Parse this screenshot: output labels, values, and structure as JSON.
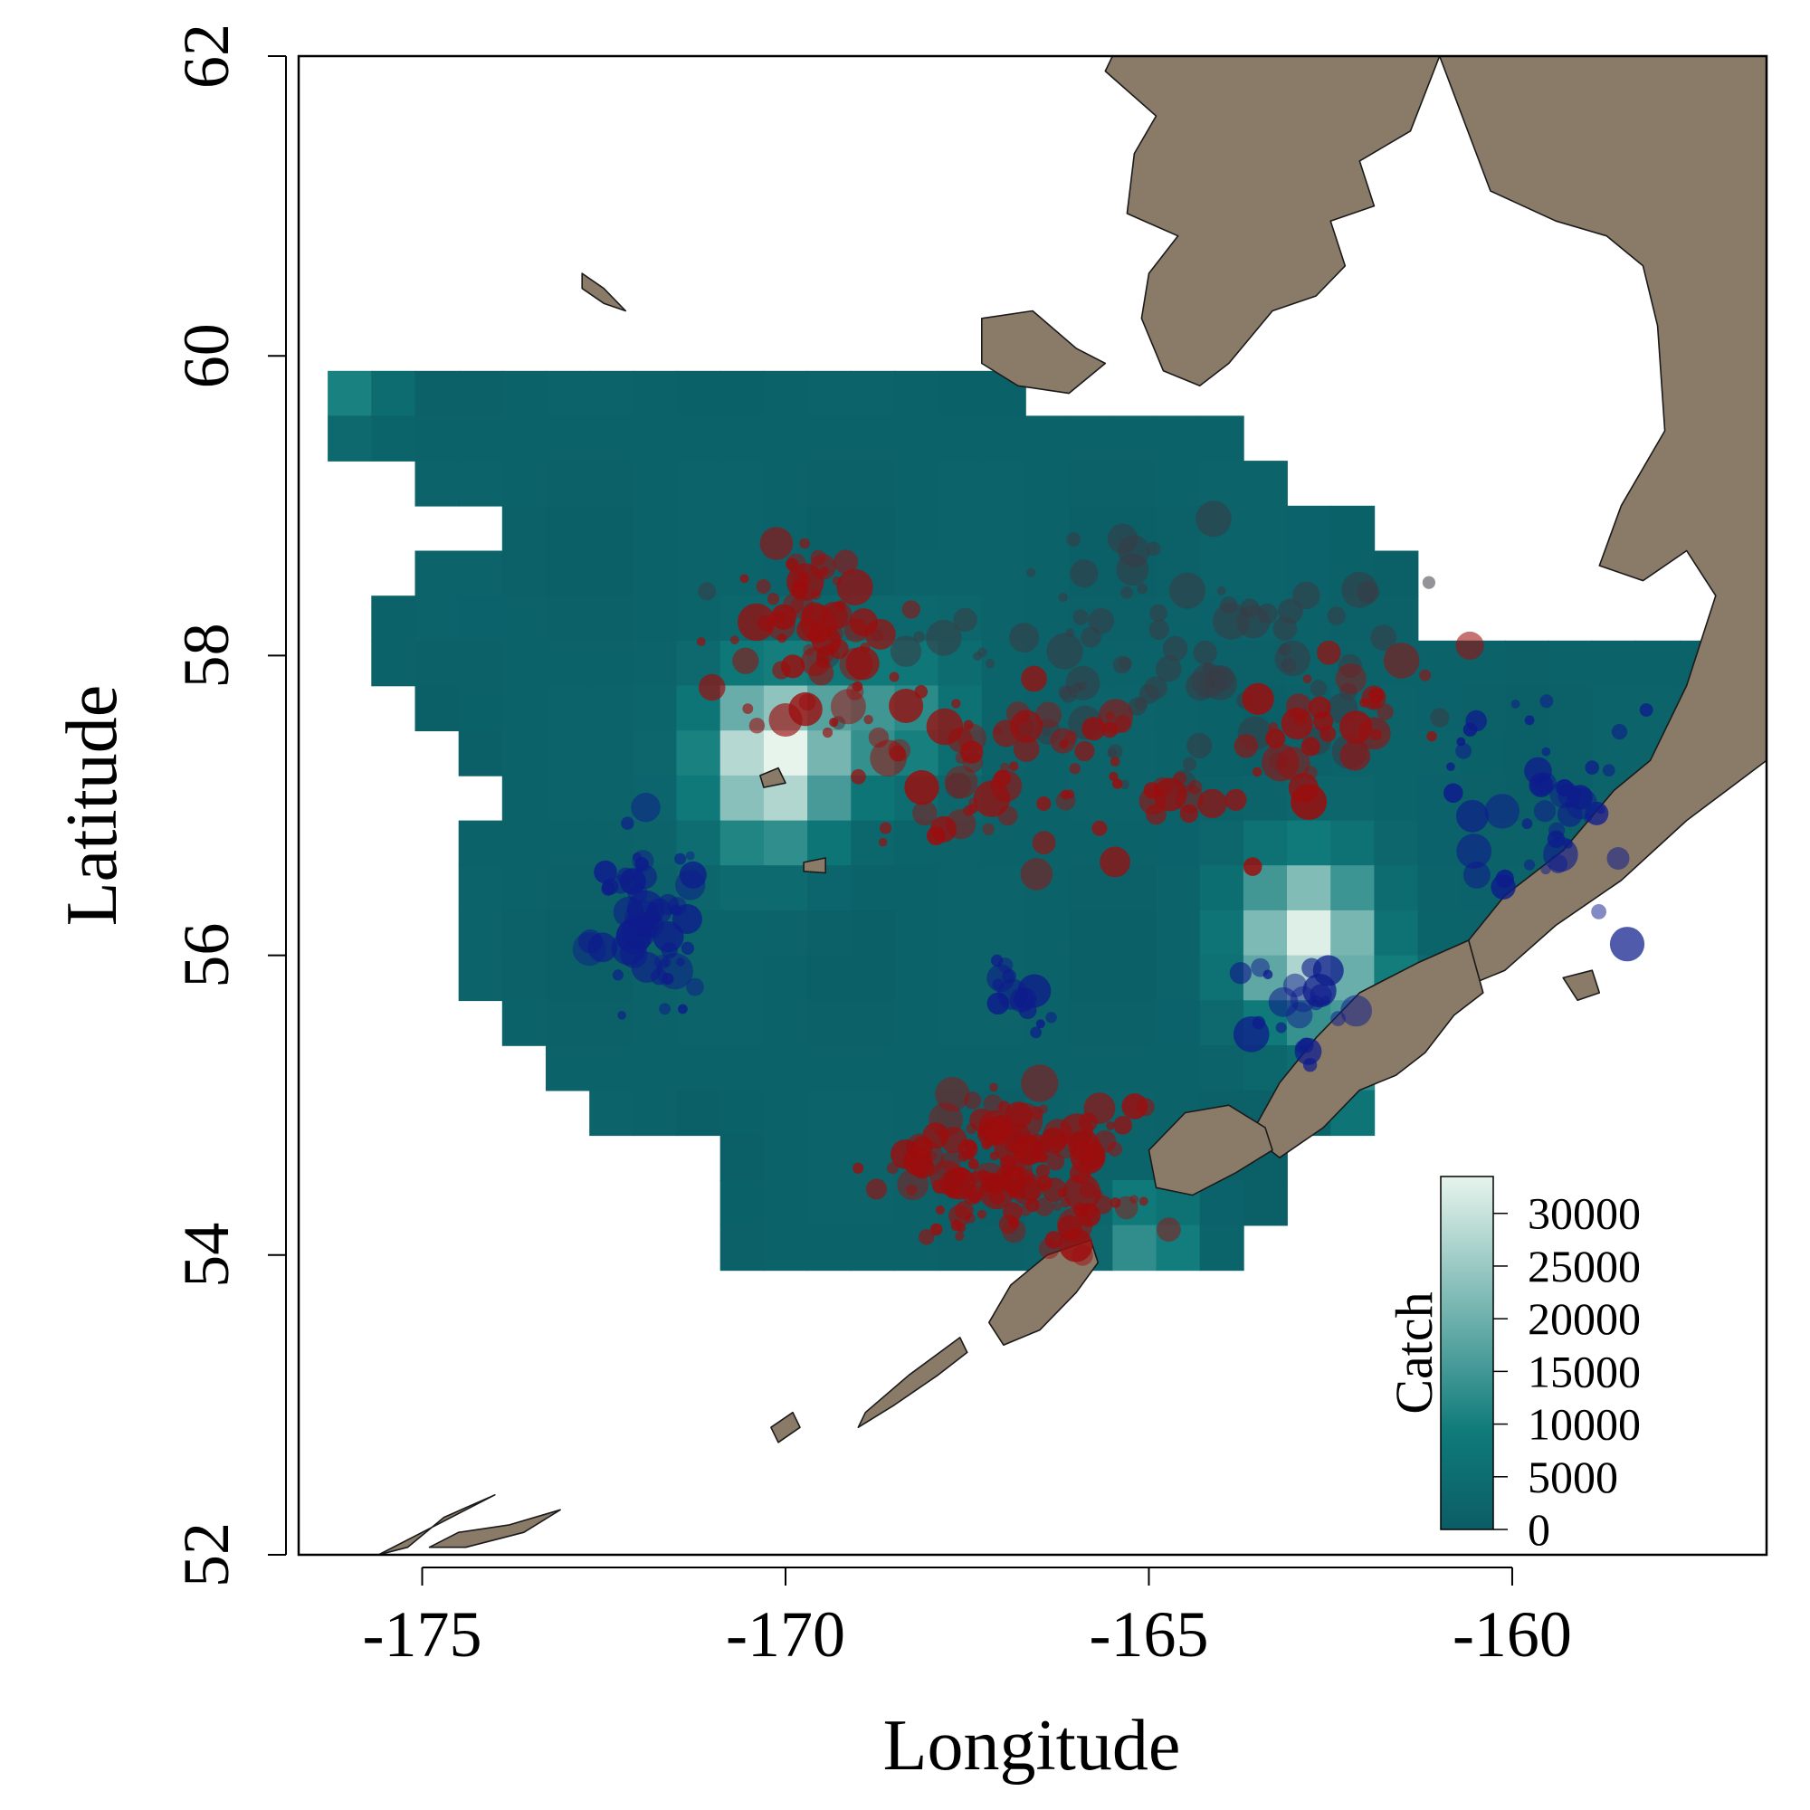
{
  "chart_data": {
    "type": "map",
    "xlabel": "Longitude",
    "ylabel": "Latitude",
    "xlim": [
      -176.7,
      -156.5
    ],
    "ylim": [
      52,
      62
    ],
    "x_ticks": [
      "-175",
      "-170",
      "-165",
      "-160"
    ],
    "x_tick_values": [
      -175,
      -170,
      -165,
      -160
    ],
    "y_ticks": [
      "52",
      "54",
      "56",
      "58",
      "60",
      "62"
    ],
    "y_tick_values": [
      52,
      54,
      56,
      58,
      60,
      62
    ],
    "legend": {
      "title": "Catch",
      "placement": "bottom-right",
      "ticks": [
        "0",
        "5000",
        "10000",
        "15000",
        "20000",
        "25000",
        "30000"
      ],
      "tick_values": [
        0,
        5000,
        10000,
        15000,
        20000,
        25000,
        30000
      ],
      "max": 33500,
      "color_low": "#0b5d66",
      "color_mid": "#0f7b7a",
      "color_high": "#e6f4ec"
    },
    "colors": {
      "land": "#8a7b68",
      "red_points": "#9c0d0d",
      "dark_points": "#3a3a44",
      "blue_points": "#0e1c8c"
    },
    "grid_cell_deg": [
      0.6,
      0.3
    ],
    "grid_rows": [
      {
        "lat": 59.9,
        "lon_range": [
          -176.3,
          -167.0
        ]
      },
      {
        "lat": 59.6,
        "lon_range": [
          -176.3,
          -164.0
        ]
      },
      {
        "lat": 59.3,
        "lon_range": [
          -175.1,
          -163.4
        ]
      },
      {
        "lat": 59.0,
        "lon_range": [
          -173.9,
          -162.2
        ]
      },
      {
        "lat": 58.7,
        "lon_range": [
          -175.1,
          -161.6
        ]
      },
      {
        "lat": 58.4,
        "lon_range": [
          -175.7,
          -161.6
        ]
      },
      {
        "lat": 58.1,
        "lon_range": [
          -175.7,
          -157.4
        ]
      },
      {
        "lat": 57.8,
        "lon_range": [
          -175.1,
          -157.4
        ]
      },
      {
        "lat": 57.5,
        "lon_range": [
          -174.5,
          -157.4
        ]
      },
      {
        "lat": 57.2,
        "lon_range": [
          -173.9,
          -158.0
        ]
      },
      {
        "lat": 56.9,
        "lon_range": [
          -174.5,
          -158.6
        ]
      },
      {
        "lat": 56.6,
        "lon_range": [
          -174.5,
          -159.8
        ]
      },
      {
        "lat": 56.3,
        "lon_range": [
          -174.5,
          -160.4
        ]
      },
      {
        "lat": 56.0,
        "lon_range": [
          -174.5,
          -161.0
        ]
      },
      {
        "lat": 55.7,
        "lon_range": [
          -173.9,
          -161.6
        ]
      },
      {
        "lat": 55.4,
        "lon_range": [
          -173.3,
          -162.2
        ]
      },
      {
        "lat": 55.1,
        "lon_range": [
          -172.7,
          -162.2
        ]
      },
      {
        "lat": 54.8,
        "lon_range": [
          -170.9,
          -163.4
        ]
      },
      {
        "lat": 54.5,
        "lon_range": [
          -170.9,
          -163.4
        ]
      },
      {
        "lat": 54.2,
        "lon_range": [
          -170.9,
          -164.0
        ]
      }
    ],
    "catch_hotspots": [
      {
        "lon": -170.2,
        "lat": 57.3,
        "peak": 33000,
        "spread_lon": 0.9,
        "spread_lat": 0.55
      },
      {
        "lon": -162.8,
        "lat": 56.1,
        "peak": 31000,
        "spread_lon": 0.9,
        "spread_lat": 0.55
      },
      {
        "lon": -161.6,
        "lat": 55.3,
        "peak": 20000,
        "spread_lon": 0.7,
        "spread_lat": 0.45
      },
      {
        "lon": -165.0,
        "lat": 54.15,
        "peak": 15000,
        "spread_lon": 0.6,
        "spread_lat": 0.25
      },
      {
        "lon": -168.5,
        "lat": 57.6,
        "peak": 12000,
        "spread_lon": 1.0,
        "spread_lat": 0.5
      },
      {
        "lon": -176.0,
        "lat": 59.8,
        "peak": 9000,
        "spread_lon": 0.6,
        "spread_lat": 0.3
      }
    ],
    "point_clusters": [
      {
        "group": "red",
        "lon": -169.6,
        "lat": 58.1,
        "spread_lon": 0.9,
        "spread_lat": 0.55,
        "count": 70
      },
      {
        "group": "red",
        "lon": -166.5,
        "lat": 57.2,
        "spread_lon": 2.3,
        "spread_lat": 0.5,
        "count": 70
      },
      {
        "group": "red",
        "lon": -162.8,
        "lat": 57.5,
        "spread_lon": 1.5,
        "spread_lat": 0.6,
        "count": 35
      },
      {
        "group": "red",
        "lon": -167.0,
        "lat": 54.6,
        "spread_lon": 1.4,
        "spread_lat": 0.4,
        "count": 150
      },
      {
        "group": "dark",
        "lon": -165.0,
        "lat": 58.0,
        "spread_lon": 3.2,
        "spread_lat": 0.7,
        "count": 90
      },
      {
        "group": "blue",
        "lon": -171.8,
        "lat": 56.2,
        "spread_lon": 0.6,
        "spread_lat": 0.5,
        "count": 55
      },
      {
        "group": "blue",
        "lon": -166.8,
        "lat": 55.75,
        "spread_lon": 0.35,
        "spread_lat": 0.25,
        "count": 14
      },
      {
        "group": "blue",
        "lon": -162.9,
        "lat": 55.6,
        "spread_lon": 0.7,
        "spread_lat": 0.3,
        "count": 22
      },
      {
        "group": "blue",
        "lon": -159.5,
        "lat": 57.0,
        "spread_lon": 1.2,
        "spread_lat": 0.6,
        "count": 45
      }
    ],
    "point_size_range": [
      0.06,
      0.26
    ],
    "land": [
      {
        "name": "alaska-mainland",
        "coords": [
          [
            -161.0,
            62.0
          ],
          [
            -161.4,
            61.5
          ],
          [
            -162.1,
            61.3
          ],
          [
            -161.9,
            61.0
          ],
          [
            -162.5,
            60.9
          ],
          [
            -162.3,
            60.6
          ],
          [
            -162.7,
            60.4
          ],
          [
            -163.3,
            60.3
          ],
          [
            -163.9,
            59.95
          ],
          [
            -164.3,
            59.8
          ],
          [
            -164.8,
            59.9
          ],
          [
            -165.1,
            60.25
          ],
          [
            -165.0,
            60.55
          ],
          [
            -164.6,
            60.8
          ],
          [
            -165.3,
            60.95
          ],
          [
            -165.2,
            61.35
          ],
          [
            -164.9,
            61.6
          ],
          [
            -165.6,
            61.9
          ],
          [
            -165.5,
            62.0
          ]
        ]
      },
      {
        "name": "alaska-peninsula",
        "coords": [
          [
            -156.5,
            62.0
          ],
          [
            -161.0,
            62.0
          ],
          [
            -160.3,
            61.1
          ],
          [
            -159.4,
            60.9
          ],
          [
            -158.7,
            60.8
          ],
          [
            -158.2,
            60.6
          ],
          [
            -158.0,
            60.2
          ],
          [
            -157.9,
            59.5
          ],
          [
            -158.5,
            59.0
          ],
          [
            -158.8,
            58.6
          ],
          [
            -158.2,
            58.5
          ],
          [
            -157.6,
            58.7
          ],
          [
            -157.2,
            58.4
          ],
          [
            -157.6,
            57.8
          ],
          [
            -158.1,
            57.3
          ],
          [
            -158.6,
            57.1
          ],
          [
            -159.3,
            56.7
          ],
          [
            -160.1,
            56.4
          ],
          [
            -160.6,
            56.1
          ],
          [
            -160.6,
            55.8
          ],
          [
            -160.1,
            55.9
          ],
          [
            -159.4,
            56.2
          ],
          [
            -158.5,
            56.5
          ],
          [
            -157.6,
            56.9
          ],
          [
            -156.5,
            57.3
          ]
        ]
      },
      {
        "name": "alaska-peninsula-west",
        "coords": [
          [
            -160.6,
            56.1
          ],
          [
            -161.3,
            55.95
          ],
          [
            -162.1,
            55.75
          ],
          [
            -162.7,
            55.45
          ],
          [
            -163.2,
            55.15
          ],
          [
            -163.6,
            54.8
          ],
          [
            -163.2,
            54.65
          ],
          [
            -162.6,
            54.85
          ],
          [
            -162.1,
            55.1
          ],
          [
            -161.6,
            55.2
          ],
          [
            -161.2,
            55.35
          ],
          [
            -160.8,
            55.6
          ],
          [
            -160.4,
            55.75
          ]
        ]
      },
      {
        "name": "unimak-island",
        "coords": [
          [
            -163.4,
            54.85
          ],
          [
            -163.9,
            55.0
          ],
          [
            -164.5,
            54.95
          ],
          [
            -165.0,
            54.7
          ],
          [
            -164.9,
            54.45
          ],
          [
            -164.4,
            54.4
          ],
          [
            -163.8,
            54.55
          ],
          [
            -163.3,
            54.7
          ]
        ]
      },
      {
        "name": "nunivak-island",
        "coords": [
          [
            -166.0,
            60.05
          ],
          [
            -166.6,
            60.3
          ],
          [
            -167.3,
            60.25
          ],
          [
            -167.3,
            59.95
          ],
          [
            -166.8,
            59.8
          ],
          [
            -166.1,
            59.75
          ],
          [
            -165.6,
            59.95
          ]
        ]
      },
      {
        "name": "st-matthew-island",
        "coords": [
          [
            -172.8,
            60.55
          ],
          [
            -172.5,
            60.45
          ],
          [
            -172.2,
            60.3
          ],
          [
            -172.5,
            60.35
          ],
          [
            -172.8,
            60.45
          ]
        ]
      },
      {
        "name": "st-paul-island",
        "coords": [
          [
            -170.35,
            57.2
          ],
          [
            -170.1,
            57.25
          ],
          [
            -170.0,
            57.15
          ],
          [
            -170.3,
            57.12
          ]
        ]
      },
      {
        "name": "st-george-island",
        "coords": [
          [
            -169.75,
            56.62
          ],
          [
            -169.45,
            56.65
          ],
          [
            -169.45,
            56.55
          ],
          [
            -169.75,
            56.56
          ]
        ]
      },
      {
        "name": "unalaska-island",
        "coords": [
          [
            -165.8,
            54.1
          ],
          [
            -166.4,
            54.0
          ],
          [
            -166.9,
            53.8
          ],
          [
            -167.2,
            53.55
          ],
          [
            -167.0,
            53.4
          ],
          [
            -166.5,
            53.5
          ],
          [
            -166.0,
            53.75
          ],
          [
            -165.7,
            53.95
          ]
        ]
      },
      {
        "name": "umnak-island",
        "coords": [
          [
            -167.6,
            53.45
          ],
          [
            -168.3,
            53.2
          ],
          [
            -168.9,
            52.95
          ],
          [
            -169.0,
            52.85
          ],
          [
            -168.5,
            53.0
          ],
          [
            -167.9,
            53.2
          ],
          [
            -167.5,
            53.35
          ]
        ]
      },
      {
        "name": "islands-of-four-mountains",
        "coords": [
          [
            -169.9,
            52.95
          ],
          [
            -170.2,
            52.85
          ],
          [
            -170.1,
            52.75
          ],
          [
            -169.8,
            52.85
          ]
        ]
      },
      {
        "name": "amlia-island",
        "coords": [
          [
            -173.1,
            52.3
          ],
          [
            -173.6,
            52.15
          ],
          [
            -174.4,
            52.05
          ],
          [
            -174.9,
            52.05
          ],
          [
            -174.5,
            52.15
          ],
          [
            -173.8,
            52.2
          ]
        ]
      },
      {
        "name": "atka-island",
        "coords": [
          [
            -174.0,
            52.4
          ],
          [
            -174.7,
            52.25
          ],
          [
            -175.2,
            52.05
          ],
          [
            -175.6,
            52.0
          ],
          [
            -175.0,
            52.15
          ],
          [
            -174.4,
            52.3
          ]
        ]
      },
      {
        "name": "kodiak-shelikof-islands",
        "coords": [
          [
            -158.9,
            55.9
          ],
          [
            -159.3,
            55.85
          ],
          [
            -159.1,
            55.7
          ],
          [
            -158.8,
            55.75
          ]
        ]
      }
    ]
  }
}
